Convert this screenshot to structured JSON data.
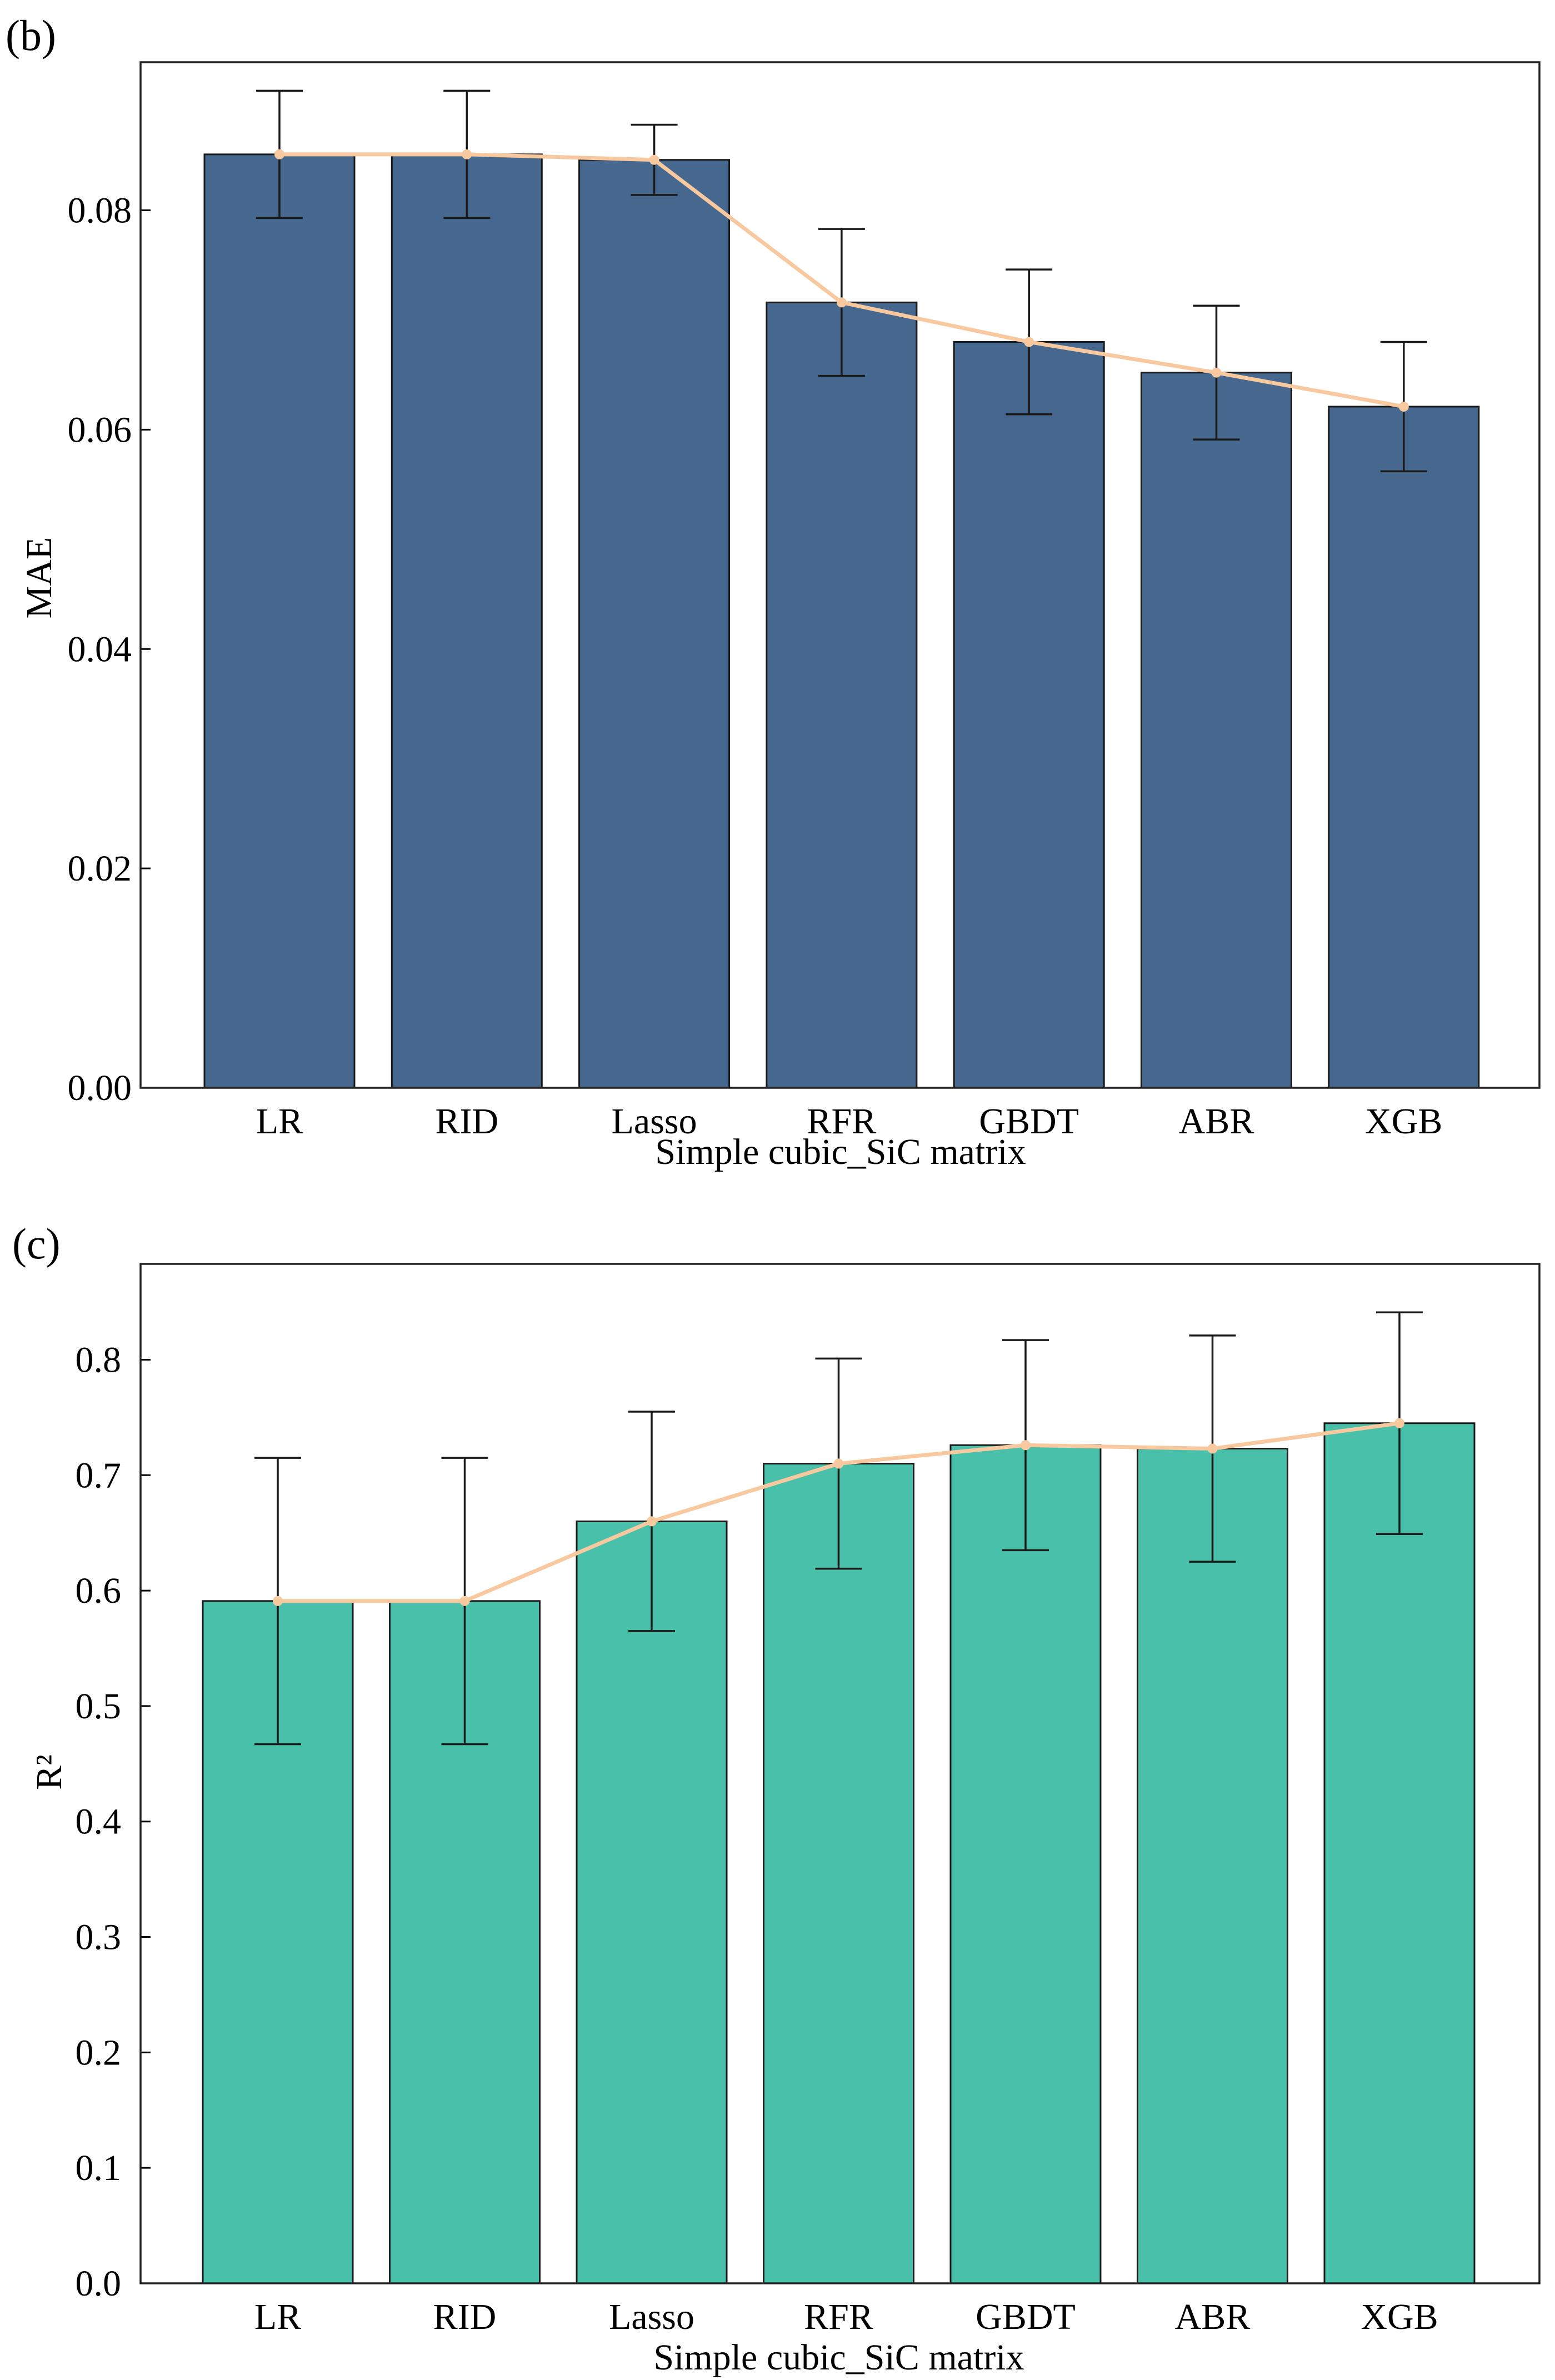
{
  "chart_data": [
    {
      "type": "bar",
      "panel_label": "(b)",
      "title": "",
      "xlabel": "Simple cubic_SiC matrix",
      "ylabel": "MAE",
      "ylim": [
        0,
        0.0935
      ],
      "yticks": [
        0.0,
        0.02,
        0.04,
        0.06,
        0.08
      ],
      "ytick_labels": [
        "0.00",
        "0.02",
        "0.04",
        "0.06",
        "0.08"
      ],
      "categories": [
        "LR",
        "RID",
        "Lasso",
        "RFR",
        "GBDT",
        "ABR",
        "XGB"
      ],
      "values": [
        0.0851,
        0.0851,
        0.0846,
        0.0716,
        0.068,
        0.0652,
        0.0621
      ],
      "error": [
        0.0058,
        0.0058,
        0.0032,
        0.0067,
        0.0066,
        0.0061,
        0.0059
      ],
      "bar_color": "#46688f",
      "line_color": "#f8c89e",
      "errorbar_color": "#1a1a1a"
    },
    {
      "type": "bar",
      "panel_label": "(c)",
      "title": "",
      "xlabel": "Simple cubic_SiC matrix",
      "ylabel": "R²",
      "ylim": [
        0,
        0.883
      ],
      "yticks": [
        0.0,
        0.1,
        0.2,
        0.3,
        0.4,
        0.5,
        0.6,
        0.7,
        0.8
      ],
      "ytick_labels": [
        "0.0",
        "0.1",
        "0.2",
        "0.3",
        "0.4",
        "0.5",
        "0.6",
        "0.7",
        "0.8"
      ],
      "categories": [
        "LR",
        "RID",
        "Lasso",
        "RFR",
        "GBDT",
        "ABR",
        "XGB"
      ],
      "values": [
        0.591,
        0.591,
        0.66,
        0.71,
        0.726,
        0.723,
        0.745
      ],
      "error": [
        0.124,
        0.124,
        0.095,
        0.091,
        0.091,
        0.098,
        0.096
      ],
      "bar_color": "#49c0a9",
      "line_color": "#f8c89e",
      "errorbar_color": "#1a1a1a"
    }
  ]
}
